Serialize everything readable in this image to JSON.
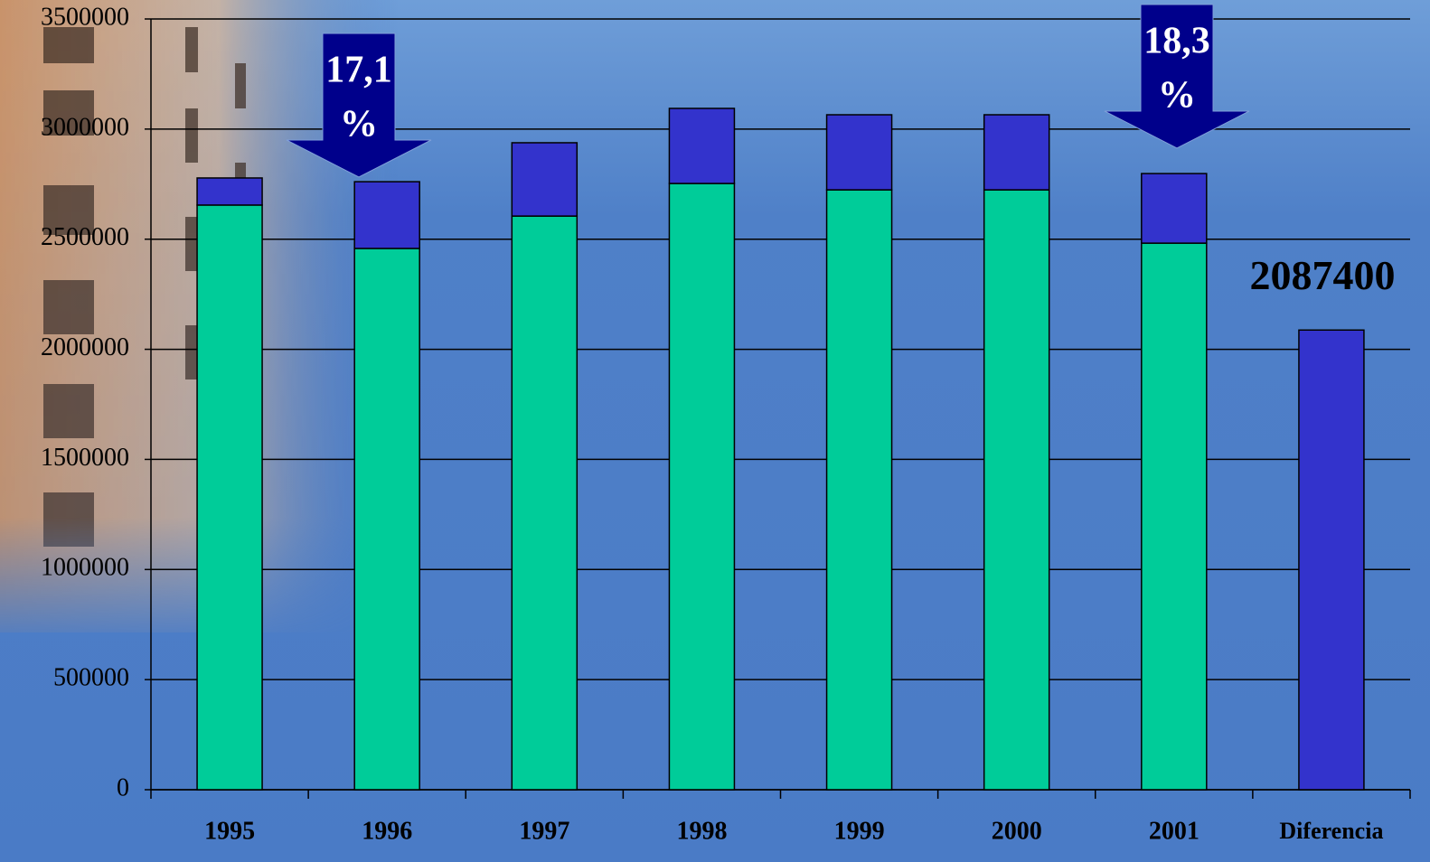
{
  "chart_data": {
    "type": "stacked_bar",
    "categories": [
      "1995",
      "1996",
      "1997",
      "1998",
      "1999",
      "2000",
      "2001",
      "Diferencia"
    ],
    "series": [
      {
        "color": "#00cc99",
        "values": [
          2655000,
          2458000,
          2605000,
          2753000,
          2724000,
          2724000,
          2482000,
          null
        ]
      },
      {
        "color": "#3333cc",
        "values": [
          123000,
          303000,
          333000,
          341000,
          341000,
          341000,
          316000,
          2087400
        ]
      }
    ],
    "ylim": [
      0,
      3500000
    ],
    "yticks": [
      0,
      500000,
      1000000,
      1500000,
      2000000,
      2500000,
      3000000,
      3500000
    ],
    "grid": true,
    "annotations": [
      {
        "lines": [
          "17,1",
          "%"
        ],
        "category": "1996"
      },
      {
        "lines": [
          "18,3",
          "%"
        ],
        "category": "2001"
      }
    ]
  }
}
